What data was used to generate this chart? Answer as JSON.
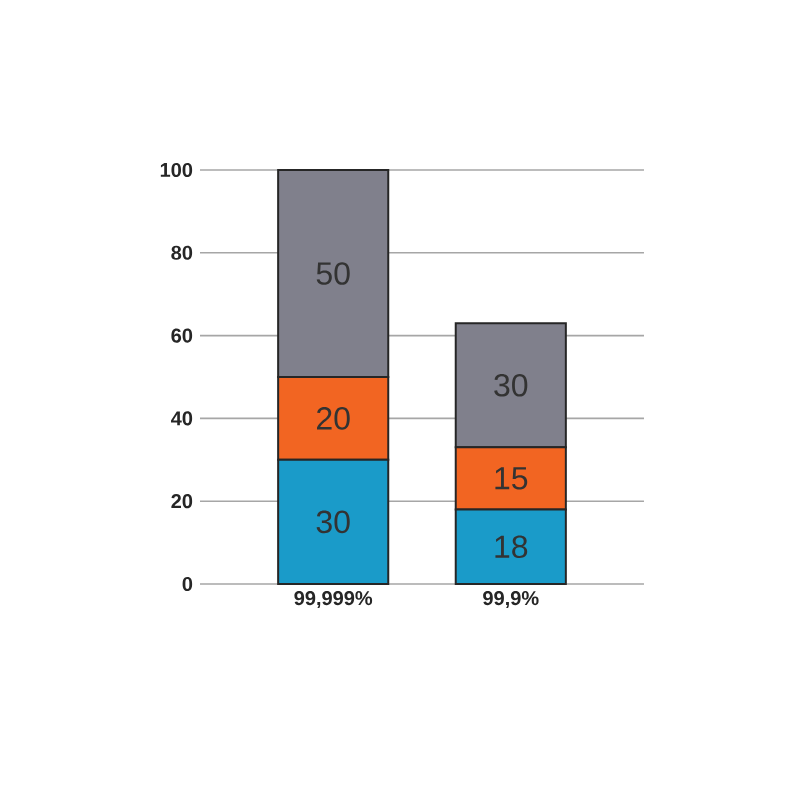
{
  "chart_data": {
    "type": "bar",
    "stacked": true,
    "data_labels": true,
    "grid": "y",
    "categories": [
      "99,999%",
      "99,9%"
    ],
    "series": [
      {
        "color": "#1a9bc9",
        "values": [
          30,
          18
        ]
      },
      {
        "color": "#f26522",
        "values": [
          20,
          15
        ]
      },
      {
        "color": "#80808c",
        "values": [
          50,
          30
        ]
      }
    ],
    "ylim": [
      0,
      100
    ],
    "yticks": [
      0,
      20,
      40,
      60,
      80,
      100
    ]
  }
}
